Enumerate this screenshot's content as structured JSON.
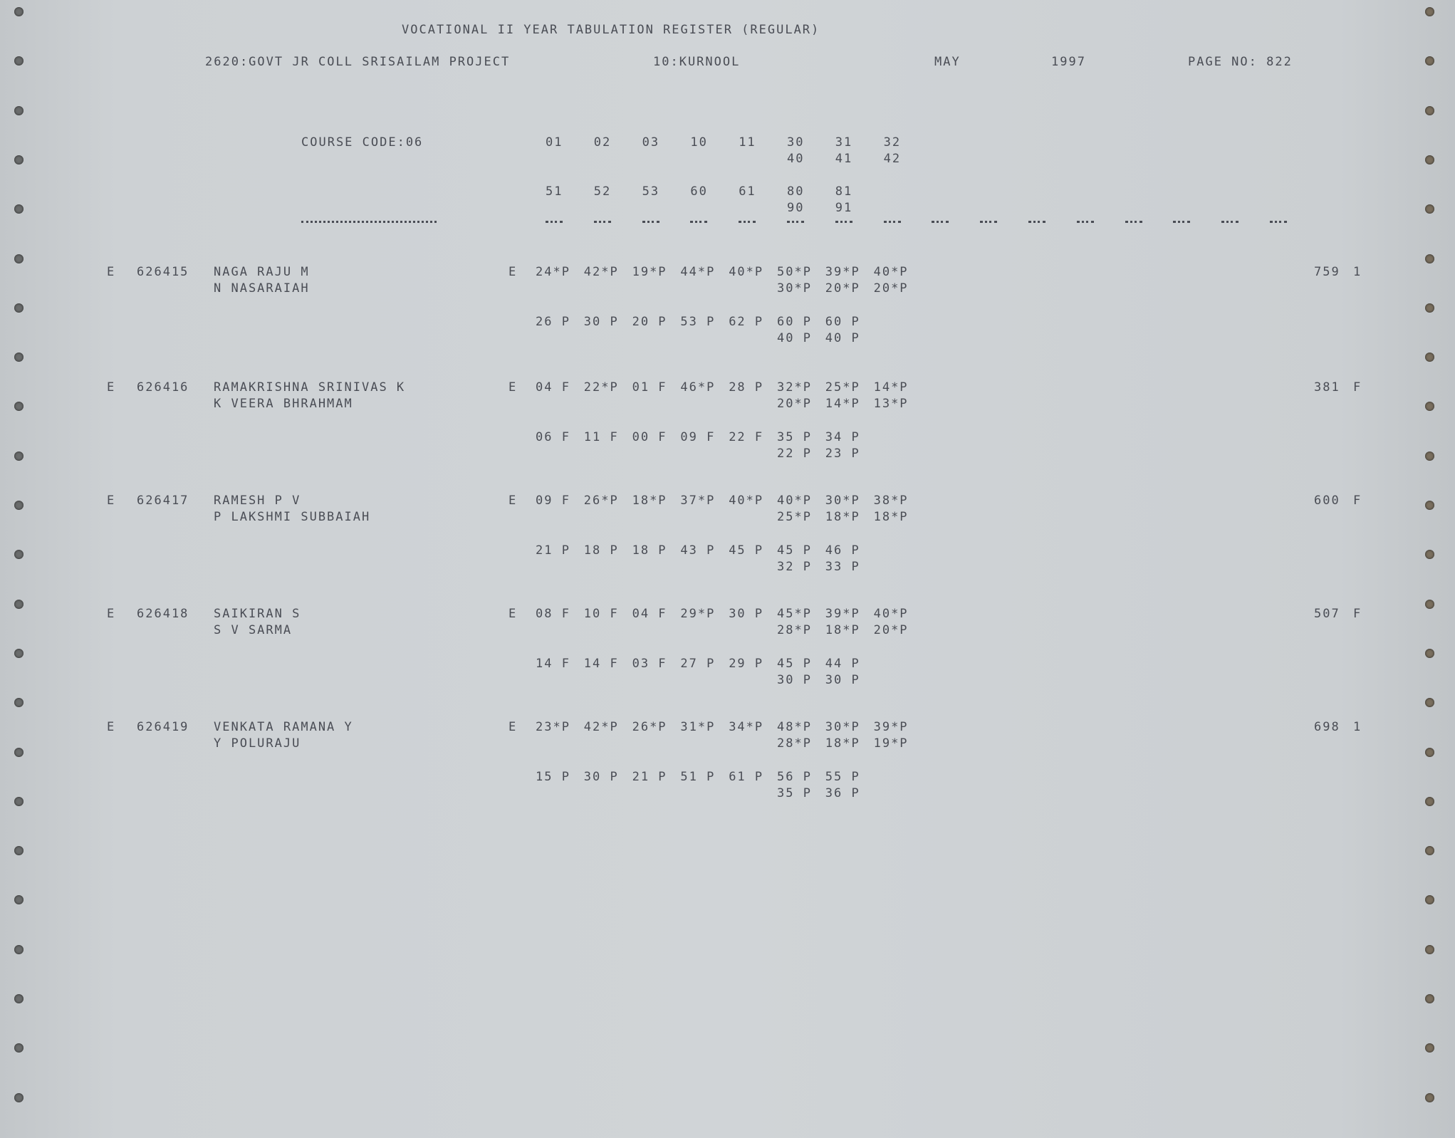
{
  "header": {
    "title": "VOCATIONAL II YEAR TABULATION REGISTER (REGULAR)",
    "college": "2620:GOVT JR COLL SRISAILAM PROJECT",
    "district": "10:KURNOOL",
    "month": "MAY",
    "year": "1997",
    "page": "PAGE NO: 822",
    "course_code": "COURSE CODE:06"
  },
  "subject_codes": {
    "row1": [
      "01",
      "02",
      "03",
      "10",
      "11",
      "30",
      "31",
      "32"
    ],
    "row1b": [
      "40",
      "41",
      "42"
    ],
    "row2": [
      "51",
      "52",
      "53",
      "60",
      "61",
      "80",
      "81"
    ],
    "row2b": [
      "90",
      "91"
    ]
  },
  "records": [
    {
      "type": "E",
      "roll": "626415",
      "name": "NAGA RAJU M",
      "parent": "N NASARAIAH",
      "medium": "E",
      "marks1": [
        "24*P",
        "42*P",
        "19*P",
        "44*P",
        "40*P",
        "50*P",
        "39*P",
        "40*P"
      ],
      "marks1b": [
        "30*P",
        "20*P",
        "20*P"
      ],
      "marks2": [
        "26 P",
        "30 P",
        "20 P",
        "53 P",
        "62 P",
        "60 P",
        "60 P"
      ],
      "marks2b": [
        "40 P",
        "40 P"
      ],
      "total": "759",
      "result": "1"
    },
    {
      "type": "E",
      "roll": "626416",
      "name": "RAMAKRISHNA SRINIVAS K",
      "parent": "K VEERA BHRAHMAM",
      "medium": "E",
      "marks1": [
        "04 F",
        "22*P",
        "01 F",
        "46*P",
        "28 P",
        "32*P",
        "25*P",
        "14*P"
      ],
      "marks1b": [
        "20*P",
        "14*P",
        "13*P"
      ],
      "marks2": [
        "06 F",
        "11 F",
        "00 F",
        "09 F",
        "22 F",
        "35 P",
        "34 P"
      ],
      "marks2b": [
        "22 P",
        "23 P"
      ],
      "total": "381",
      "result": "F"
    },
    {
      "type": "E",
      "roll": "626417",
      "name": "RAMESH P V",
      "parent": "P LAKSHMI SUBBAIAH",
      "medium": "E",
      "marks1": [
        "09 F",
        "26*P",
        "18*P",
        "37*P",
        "40*P",
        "40*P",
        "30*P",
        "38*P"
      ],
      "marks1b": [
        "25*P",
        "18*P",
        "18*P"
      ],
      "marks2": [
        "21 P",
        "18 P",
        "18 P",
        "43 P",
        "45 P",
        "45 P",
        "46 P"
      ],
      "marks2b": [
        "32 P",
        "33 P"
      ],
      "total": "600",
      "result": "F"
    },
    {
      "type": "E",
      "roll": "626418",
      "name": "SAIKIRAN S",
      "parent": "S V SARMA",
      "medium": "E",
      "marks1": [
        "08 F",
        "10 F",
        "04 F",
        "29*P",
        "30 P",
        "45*P",
        "39*P",
        "40*P"
      ],
      "marks1b": [
        "28*P",
        "18*P",
        "20*P"
      ],
      "marks2": [
        "14 F",
        "14 F",
        "03 F",
        "27 P",
        "29 P",
        "45 P",
        "44 P"
      ],
      "marks2b": [
        "30 P",
        "30 P"
      ],
      "total": "507",
      "result": "F"
    },
    {
      "type": "E",
      "roll": "626419",
      "name": "VENKATA RAMANA Y",
      "parent": "Y POLURAJU",
      "medium": "E",
      "marks1": [
        "23*P",
        "42*P",
        "26*P",
        "31*P",
        "34*P",
        "48*P",
        "30*P",
        "39*P"
      ],
      "marks1b": [
        "28*P",
        "18*P",
        "19*P"
      ],
      "marks2": [
        "15 P",
        "30 P",
        "21 P",
        "51 P",
        "61 P",
        "56 P",
        "55 P"
      ],
      "marks2b": [
        "35 P",
        "36 P"
      ],
      "total": "698",
      "result": "1"
    }
  ]
}
